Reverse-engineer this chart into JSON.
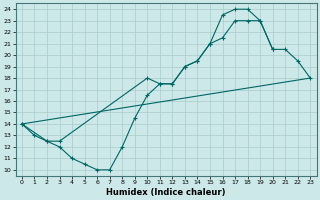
{
  "xlabel": "Humidex (Indice chaleur)",
  "bg_color": "#cde8e8",
  "grid_color": "#aacccc",
  "line_color": "#006666",
  "xlim": [
    -0.5,
    23.5
  ],
  "ylim": [
    9.5,
    24.5
  ],
  "xticks": [
    0,
    1,
    2,
    3,
    4,
    5,
    6,
    7,
    8,
    9,
    10,
    11,
    12,
    13,
    14,
    15,
    16,
    17,
    18,
    19,
    20,
    21,
    22,
    23
  ],
  "yticks": [
    10,
    11,
    12,
    13,
    14,
    15,
    16,
    17,
    18,
    19,
    20,
    21,
    22,
    23,
    24
  ],
  "line1_x": [
    0,
    1,
    2,
    3,
    4,
    5,
    6,
    7,
    8,
    9,
    10,
    11,
    12,
    13,
    14,
    15,
    16,
    17,
    18,
    19,
    20
  ],
  "line1_y": [
    14,
    13,
    12.5,
    12,
    11,
    10.5,
    10,
    10,
    12,
    14.5,
    16.5,
    17.5,
    17.5,
    19,
    19.5,
    21,
    21.5,
    23,
    23,
    23,
    20.5
  ],
  "line2_x": [
    0,
    2,
    3,
    10,
    11,
    12,
    13,
    14,
    15,
    16,
    17,
    18,
    19,
    20,
    21,
    22,
    23
  ],
  "line2_y": [
    14,
    12.5,
    12.5,
    18,
    17.5,
    17.5,
    19,
    19.5,
    21,
    23.5,
    24,
    24,
    23,
    20.5,
    20.5,
    19.5,
    18
  ],
  "line3_x": [
    0,
    23
  ],
  "line3_y": [
    14,
    18
  ]
}
